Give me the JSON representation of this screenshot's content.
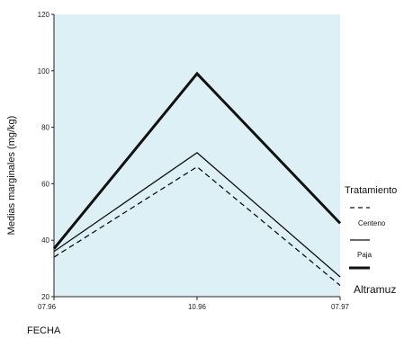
{
  "chart_data": {
    "type": "line",
    "title": "",
    "xlabel": "FECHA",
    "ylabel": "Medias marginales (mg/kg)",
    "categories": [
      "07.96",
      "10.96",
      "07.97"
    ],
    "ylim": [
      20,
      120
    ],
    "yticks": [
      20,
      40,
      60,
      80,
      100,
      120
    ],
    "background_color": "#ddf0f5",
    "legend_title": "Tratamiento",
    "legend_placement": "right",
    "series": [
      {
        "name": "Centeno",
        "values": [
          34,
          66,
          24
        ],
        "style": "dashed",
        "color": "#111111"
      },
      {
        "name": "Paja",
        "values": [
          36,
          71,
          27
        ],
        "style": "thin",
        "color": "#111111"
      },
      {
        "name": "Altramuz",
        "values": [
          37,
          99,
          46
        ],
        "style": "thick",
        "color": "#111111"
      }
    ]
  }
}
